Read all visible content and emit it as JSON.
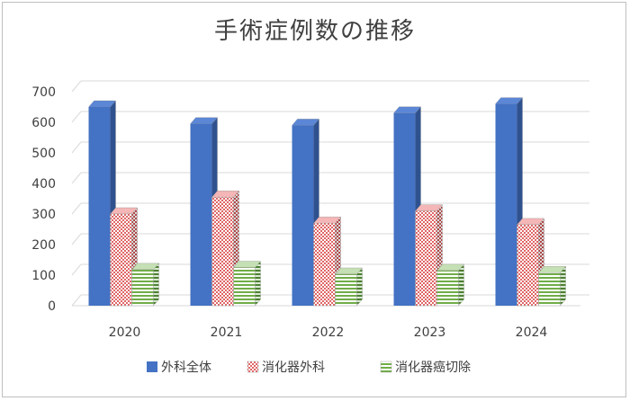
{
  "chart_data": {
    "type": "bar",
    "title": "手術症例数の推移",
    "xlabel": "",
    "ylabel": "",
    "categories": [
      "2020",
      "2021",
      "2022",
      "2023",
      "2024"
    ],
    "ylim": [
      0,
      700
    ],
    "yticks": [
      0,
      100,
      200,
      300,
      400,
      500,
      600,
      700
    ],
    "grid": true,
    "legend_position": "bottom",
    "style": "3d-clustered-column",
    "series": [
      {
        "name": "外科全体",
        "values": [
          650,
          595,
          590,
          630,
          660
        ],
        "color": "#4472c4",
        "pattern": "solid"
      },
      {
        "name": "消化器外科",
        "values": [
          300,
          355,
          270,
          310,
          265
        ],
        "color": "#ed7d7d",
        "pattern": "checker"
      },
      {
        "name": "消化器癌切除",
        "values": [
          118,
          125,
          103,
          115,
          108
        ],
        "color": "#70ad47",
        "pattern": "horizontal-stripes"
      }
    ]
  }
}
